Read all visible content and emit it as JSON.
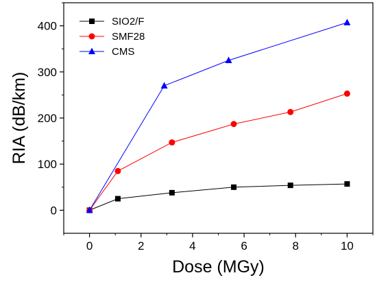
{
  "chart_data": {
    "type": "line",
    "title": "",
    "xlabel": "Dose (MGy)",
    "ylabel": "RIA (dB/km)",
    "xlim": [
      -1,
      11
    ],
    "ylim": [
      -50,
      450
    ],
    "xticks": [
      0,
      2,
      4,
      6,
      8,
      10
    ],
    "yticks": [
      0,
      100,
      200,
      300,
      400
    ],
    "grid": false,
    "legend_position": "top-left",
    "series": [
      {
        "name": "SIO2/F",
        "color": "#000000",
        "marker": "square",
        "x": [
          0,
          1.1,
          3.2,
          5.6,
          7.8,
          10
        ],
        "y": [
          0,
          25,
          38,
          50,
          54,
          57
        ]
      },
      {
        "name": "SMF28",
        "color": "#ff0000",
        "marker": "circle",
        "x": [
          0,
          1.1,
          3.2,
          5.6,
          7.8,
          10
        ],
        "y": [
          0,
          85,
          147,
          187,
          213,
          253
        ]
      },
      {
        "name": "CMS",
        "color": "#0000ff",
        "marker": "triangle",
        "x": [
          0,
          2.9,
          5.4,
          10
        ],
        "y": [
          0,
          270,
          325,
          407
        ]
      }
    ]
  }
}
